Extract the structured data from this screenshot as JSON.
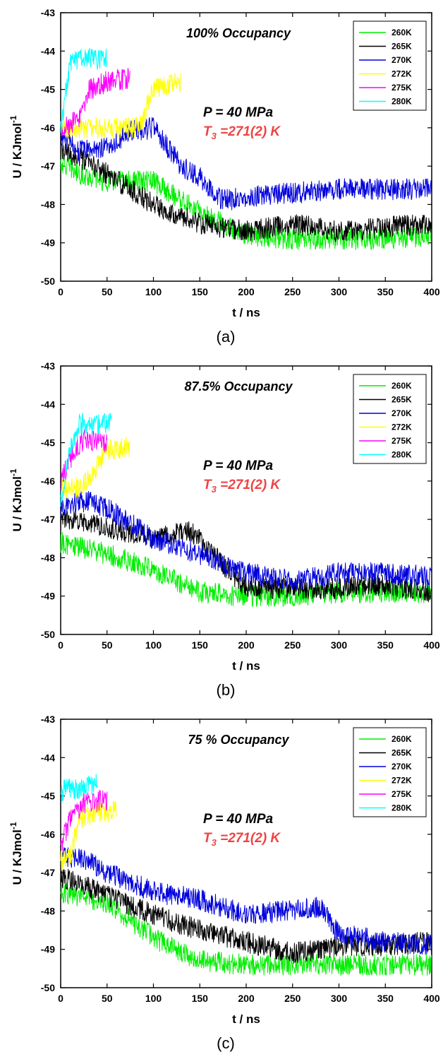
{
  "chart_data": [
    {
      "type": "line",
      "panel_label": "(a)",
      "title": "100% Occupancy",
      "xlabel": "t / ns",
      "ylabel": "U / KJmol",
      "ylabel_superscript": "-1",
      "xlim": [
        0,
        400
      ],
      "ylim": [
        -50,
        -43
      ],
      "xticks": [
        "0",
        "50",
        "100",
        "150",
        "200",
        "250",
        "300",
        "350",
        "400"
      ],
      "yticks": [
        "-50",
        "-49",
        "-48",
        "-47",
        "-46",
        "-45",
        "-44",
        "-43"
      ],
      "grid": false,
      "legend_position": "top-right",
      "annotation_pressure": "P = 40 MPa",
      "annotation_t3_symbol": "T",
      "annotation_t3_subscript": "3",
      "annotation_t3_value": " =271(2) K",
      "series": [
        {
          "name": "260K",
          "color": "#00ee00",
          "noise": 0.28,
          "x": [
            0,
            20,
            50,
            100,
            150,
            200,
            250,
            300,
            350,
            400
          ],
          "y": [
            -46.9,
            -47.2,
            -47.4,
            -47.4,
            -48.2,
            -48.8,
            -48.9,
            -48.9,
            -48.9,
            -48.8
          ]
        },
        {
          "name": "265K",
          "color": "#000000",
          "noise": 0.28,
          "x": [
            0,
            20,
            50,
            100,
            150,
            200,
            250,
            300,
            350,
            400
          ],
          "y": [
            -46.6,
            -46.8,
            -47.2,
            -48.0,
            -48.5,
            -48.7,
            -48.5,
            -48.7,
            -48.6,
            -48.5
          ]
        },
        {
          "name": "270K",
          "color": "#0000dd",
          "noise": 0.28,
          "x": [
            0,
            20,
            50,
            75,
            100,
            130,
            150,
            175,
            200,
            300,
            400
          ],
          "y": [
            -46.2,
            -46.6,
            -46.5,
            -46.1,
            -46.0,
            -47.0,
            -47.3,
            -47.9,
            -47.8,
            -47.6,
            -47.6
          ]
        },
        {
          "name": "272K",
          "color": "#ffff00",
          "noise": 0.28,
          "x": [
            0,
            20,
            50,
            85,
            100,
            130
          ],
          "y": [
            -46.0,
            -46.0,
            -46.0,
            -46.0,
            -45.0,
            -44.8
          ]
        },
        {
          "name": "275K",
          "color": "#ff00ff",
          "noise": 0.28,
          "x": [
            0,
            20,
            30,
            50,
            75
          ],
          "y": [
            -46.0,
            -45.8,
            -45.0,
            -44.8,
            -44.7
          ]
        },
        {
          "name": "280K",
          "color": "#00ffff",
          "noise": 0.28,
          "x": [
            0,
            10,
            20,
            50
          ],
          "y": [
            -46.0,
            -44.3,
            -44.2,
            -44.2
          ]
        }
      ]
    },
    {
      "type": "line",
      "panel_label": "(b)",
      "title": "87.5% Occupancy",
      "xlabel": "t / ns",
      "ylabel": "U / KJmol",
      "ylabel_superscript": "-1",
      "xlim": [
        0,
        400
      ],
      "ylim": [
        -50,
        -43
      ],
      "xticks": [
        "0",
        "50",
        "100",
        "150",
        "200",
        "250",
        "300",
        "350",
        "400"
      ],
      "yticks": [
        "-50",
        "-49",
        "-48",
        "-47",
        "-46",
        "-45",
        "-44",
        "-43"
      ],
      "grid": false,
      "legend_position": "top-right",
      "annotation_pressure": "P = 40 MPa",
      "annotation_t3_symbol": "T",
      "annotation_t3_subscript": "3",
      "annotation_t3_value": " =271(2) K",
      "series": [
        {
          "name": "260K",
          "color": "#00ee00",
          "noise": 0.28,
          "x": [
            0,
            50,
            100,
            150,
            200,
            250,
            300,
            350,
            400
          ],
          "y": [
            -47.6,
            -47.9,
            -48.3,
            -48.9,
            -49.0,
            -49.0,
            -48.9,
            -48.9,
            -48.9
          ]
        },
        {
          "name": "265K",
          "color": "#000000",
          "noise": 0.28,
          "x": [
            0,
            50,
            100,
            140,
            200,
            250,
            300,
            350,
            400
          ],
          "y": [
            -47.0,
            -47.2,
            -47.5,
            -47.3,
            -48.8,
            -48.8,
            -48.8,
            -48.7,
            -48.9
          ]
        },
        {
          "name": "270K",
          "color": "#0000dd",
          "noise": 0.28,
          "x": [
            0,
            30,
            50,
            100,
            150,
            200,
            250,
            300,
            350,
            400
          ],
          "y": [
            -46.7,
            -46.5,
            -46.7,
            -47.5,
            -47.9,
            -48.4,
            -48.6,
            -48.4,
            -48.4,
            -48.5
          ]
        },
        {
          "name": "272K",
          "color": "#ffff00",
          "noise": 0.28,
          "x": [
            0,
            20,
            35,
            50,
            75
          ],
          "y": [
            -46.2,
            -46.2,
            -45.8,
            -45.2,
            -45.1
          ]
        },
        {
          "name": "275K",
          "color": "#ff00ff",
          "noise": 0.28,
          "x": [
            0,
            15,
            25,
            50
          ],
          "y": [
            -46.0,
            -45.2,
            -44.9,
            -45.0
          ]
        },
        {
          "name": "280K",
          "color": "#00ffff",
          "noise": 0.28,
          "x": [
            0,
            10,
            20,
            55
          ],
          "y": [
            -46.5,
            -45.2,
            -44.5,
            -44.5
          ]
        }
      ]
    },
    {
      "type": "line",
      "panel_label": "(c)",
      "title": "75 % Occupancy",
      "xlabel": "t / ns",
      "ylabel": "U / KJmol",
      "ylabel_superscript": "-1",
      "xlim": [
        0,
        400
      ],
      "ylim": [
        -50,
        -43
      ],
      "xticks": [
        "0",
        "50",
        "100",
        "150",
        "200",
        "250",
        "300",
        "350",
        "400"
      ],
      "yticks": [
        "-50",
        "-49",
        "-48",
        "-47",
        "-46",
        "-45",
        "-44",
        "-43"
      ],
      "grid": false,
      "legend_position": "top-right",
      "annotation_pressure": "P = 40 MPa",
      "annotation_t3_symbol": "T",
      "annotation_t3_subscript": "3",
      "annotation_t3_value": " =271(2) K",
      "series": [
        {
          "name": "260K",
          "color": "#00ee00",
          "noise": 0.28,
          "x": [
            0,
            50,
            100,
            150,
            200,
            250,
            300,
            350,
            400
          ],
          "y": [
            -47.5,
            -47.8,
            -48.7,
            -49.3,
            -49.4,
            -49.4,
            -49.4,
            -49.4,
            -49.4
          ]
        },
        {
          "name": "265K",
          "color": "#000000",
          "noise": 0.28,
          "x": [
            0,
            50,
            100,
            150,
            200,
            250,
            300,
            350,
            400
          ],
          "y": [
            -47.1,
            -47.6,
            -48.1,
            -48.5,
            -48.8,
            -49.1,
            -48.9,
            -48.9,
            -48.8
          ]
        },
        {
          "name": "270K",
          "color": "#0000dd",
          "noise": 0.28,
          "x": [
            0,
            20,
            50,
            100,
            150,
            200,
            280,
            300,
            350,
            400
          ],
          "y": [
            -46.6,
            -46.6,
            -47.0,
            -47.5,
            -47.7,
            -48.1,
            -47.9,
            -48.6,
            -48.8,
            -48.9
          ]
        },
        {
          "name": "272K",
          "color": "#ffff00",
          "noise": 0.28,
          "x": [
            0,
            10,
            20,
            40,
            60
          ],
          "y": [
            -46.7,
            -46.6,
            -45.6,
            -45.4,
            -45.4
          ]
        },
        {
          "name": "275K",
          "color": "#ff00ff",
          "noise": 0.28,
          "x": [
            0,
            10,
            25,
            50
          ],
          "y": [
            -46.3,
            -45.6,
            -45.2,
            -45.1
          ]
        },
        {
          "name": "280K",
          "color": "#00ffff",
          "noise": 0.28,
          "x": [
            0,
            5,
            20,
            40
          ],
          "y": [
            -45.0,
            -44.8,
            -44.8,
            -44.7
          ]
        }
      ]
    }
  ]
}
